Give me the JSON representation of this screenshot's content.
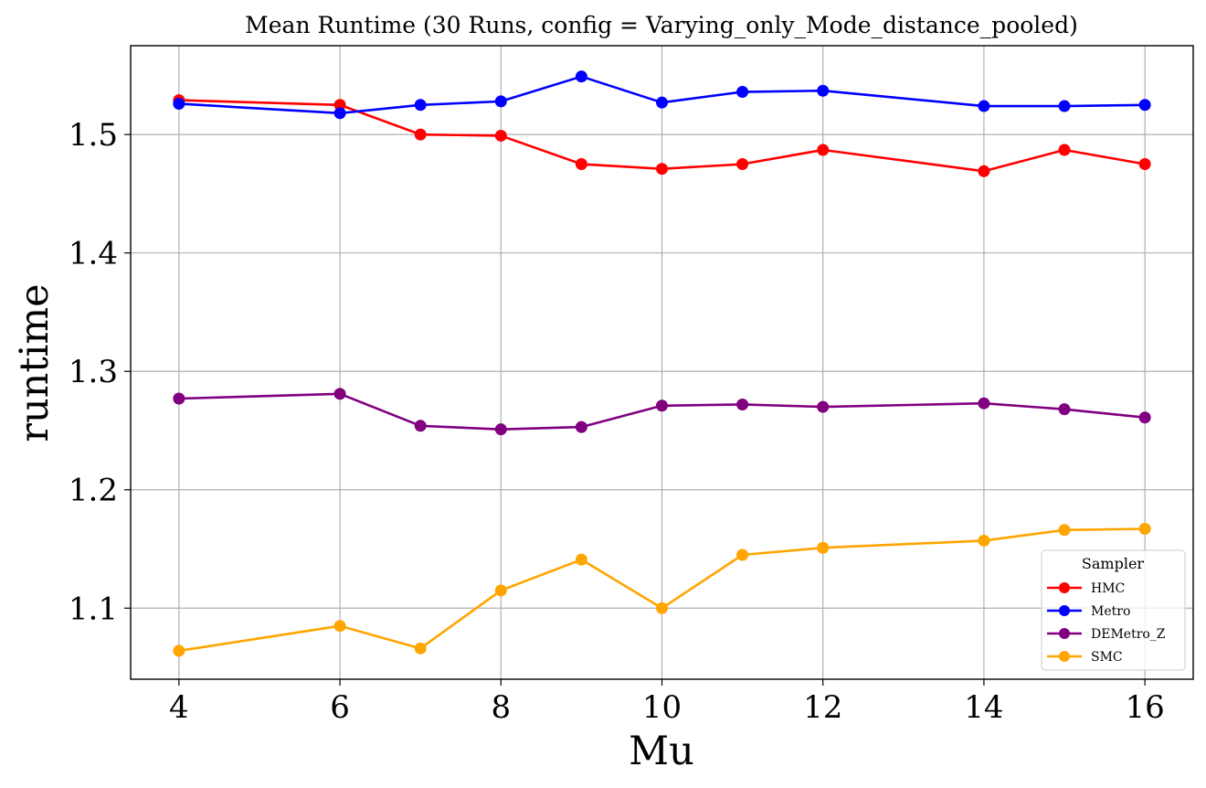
{
  "chart_data": {
    "type": "line",
    "title": "Mean Runtime (30 Runs, config = Varying_only_Mode_distance_pooled)",
    "xlabel": "Mu",
    "ylabel": "runtime",
    "x": [
      4,
      6,
      7,
      8,
      9,
      10,
      11,
      12,
      14,
      15,
      16
    ],
    "xlim": [
      3.4,
      16.6
    ],
    "ylim": [
      1.04,
      1.575
    ],
    "xticks": [
      4,
      6,
      8,
      10,
      12,
      14,
      16
    ],
    "xtick_labels": [
      "4",
      "6",
      "8",
      "10",
      "12",
      "14",
      "16"
    ],
    "yticks": [
      1.1,
      1.2,
      1.3,
      1.4,
      1.5
    ],
    "ytick_labels": [
      "1.1",
      "1.2",
      "1.3",
      "1.4",
      "1.5"
    ],
    "grid": true,
    "legend": {
      "title": "Sampler",
      "location": "lower right"
    },
    "series": [
      {
        "name": "HMC",
        "color": "#ff0000",
        "values": [
          1.529,
          1.525,
          1.5,
          1.499,
          1.475,
          1.471,
          1.475,
          1.487,
          1.469,
          1.487,
          1.475
        ]
      },
      {
        "name": "Metro",
        "color": "#0000ff",
        "values": [
          1.526,
          1.518,
          1.525,
          1.528,
          1.549,
          1.527,
          1.536,
          1.537,
          1.524,
          1.524,
          1.525
        ]
      },
      {
        "name": "DEMetro_Z",
        "color": "#800080",
        "values": [
          1.277,
          1.281,
          1.254,
          1.251,
          1.253,
          1.271,
          1.272,
          1.27,
          1.273,
          1.268,
          1.261
        ]
      },
      {
        "name": "SMC",
        "color": "#ffa500",
        "values": [
          1.064,
          1.085,
          1.066,
          1.115,
          1.141,
          1.1,
          1.145,
          1.151,
          1.157,
          1.166,
          1.167
        ]
      }
    ]
  }
}
